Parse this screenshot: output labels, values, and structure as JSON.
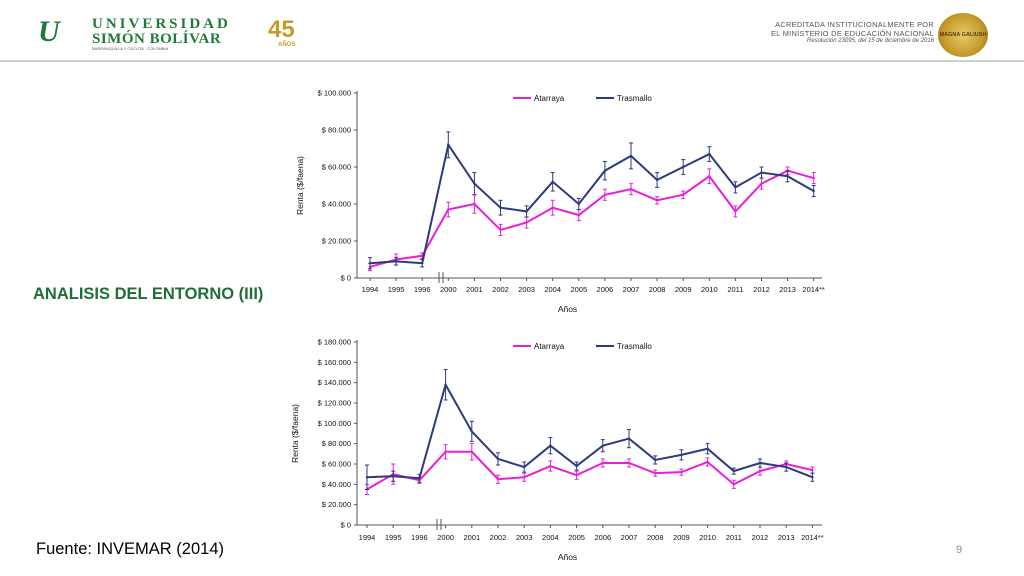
{
  "header": {
    "logo_text_line1": "UNIVERSIDAD",
    "logo_text_line2": "SIMÓN BOLÍVAR",
    "logo_small_text": "BARRANQUILLA Y CÚCUTA · COLOMBIA",
    "anniversary_badge": "45",
    "anniversary_badge_sub": "AÑOS",
    "accreditation_line1": "ACREDITADA INSTITUCIONALMENTE POR",
    "accreditation_line2": "EL MINISTERIO DE EDUCACIÓN NACIONAL",
    "accreditation_line3": "Resolución 23095, del 15 de diciembre de 2016",
    "seal_text": "MAGNA GALIUSH"
  },
  "slide": {
    "title": "ANALISIS DEL ENTORNO (III)",
    "source": "Fuente: INVEMAR (2014)",
    "page_number": "9"
  },
  "colors": {
    "brand_green": "#1f7a3a",
    "title_green": "#1f6e3a",
    "atarraya": "#e81fd8",
    "trasmallo": "#2e3a7e"
  },
  "chart_data": [
    {
      "type": "line",
      "title": "",
      "xlabel": "Años",
      "ylabel": "Renta ($/faena)",
      "categories": [
        "1994",
        "1995",
        "1996",
        "2000",
        "2001",
        "2002",
        "2003",
        "2004",
        "2005",
        "2006",
        "2007",
        "2008",
        "2009",
        "2010",
        "2011",
        "2012",
        "2013",
        "2014**"
      ],
      "axis_break_after": "1996",
      "ylim": [
        0,
        100000
      ],
      "yticks": [
        0,
        20000,
        40000,
        60000,
        80000,
        100000
      ],
      "ytick_labels": [
        "$ 0",
        "$ 20.000",
        "$ 40.000",
        "$ 60.000",
        "$ 80.000",
        "$ 100.000"
      ],
      "legend_position": "top",
      "grid": false,
      "series": [
        {
          "name": "Atarraya",
          "color": "#e81fd8",
          "values": [
            6000,
            10000,
            12000,
            37000,
            40000,
            26000,
            30000,
            38000,
            34000,
            45000,
            48000,
            42000,
            45000,
            55000,
            36000,
            51000,
            58000,
            54000
          ],
          "errors": [
            2000,
            3000,
            1500,
            4000,
            5000,
            3000,
            3000,
            4000,
            3000,
            3000,
            3000,
            2000,
            2000,
            4000,
            3000,
            3000,
            2000,
            3000
          ]
        },
        {
          "name": "Trasmallo",
          "color": "#2e3a7e",
          "values": [
            8000,
            9000,
            8000,
            72000,
            51000,
            38000,
            36000,
            52000,
            40000,
            58000,
            66000,
            53000,
            60000,
            67000,
            49000,
            57000,
            55000,
            47000
          ],
          "errors": [
            3000,
            2000,
            2000,
            7000,
            6000,
            4000,
            3000,
            5000,
            3000,
            5000,
            7000,
            4000,
            4000,
            4000,
            3000,
            3000,
            3000,
            3000
          ]
        }
      ]
    },
    {
      "type": "line",
      "title": "",
      "xlabel": "Años",
      "ylabel": "Renta ($/faena)",
      "categories": [
        "1994",
        "1995",
        "1996",
        "2000",
        "2001",
        "2002",
        "2003",
        "2004",
        "2005",
        "2006",
        "2007",
        "2008",
        "2009",
        "2010",
        "2011",
        "2012",
        "2013",
        "2014**"
      ],
      "axis_break_after": "1996",
      "ylim": [
        0,
        180000
      ],
      "yticks": [
        0,
        20000,
        40000,
        60000,
        80000,
        100000,
        120000,
        140000,
        160000,
        180000
      ],
      "ytick_labels": [
        "$ 0",
        "$ 20.000",
        "$ 40.000",
        "$ 60.000",
        "$ 80.000",
        "$ 100.000",
        "$ 120.000",
        "$ 140.000",
        "$ 160.000",
        "$ 180.000"
      ],
      "legend_position": "top",
      "grid": false,
      "series": [
        {
          "name": "Atarraya",
          "color": "#e81fd8",
          "values": [
            35000,
            50000,
            44000,
            72000,
            72000,
            45000,
            47000,
            58000,
            49000,
            61000,
            61000,
            51000,
            52000,
            62000,
            40000,
            53000,
            60000,
            54000
          ],
          "errors": [
            5000,
            10000,
            3000,
            7000,
            8000,
            4000,
            4000,
            5000,
            4000,
            4000,
            4000,
            3000,
            3000,
            4000,
            4000,
            4000,
            3000,
            3000
          ]
        },
        {
          "name": "Trasmallo",
          "color": "#2e3a7e",
          "values": [
            47000,
            48000,
            46000,
            138000,
            92000,
            65000,
            57000,
            78000,
            58000,
            78000,
            85000,
            64000,
            69000,
            75000,
            53000,
            61000,
            57000,
            47000
          ],
          "errors": [
            12000,
            5000,
            4000,
            15000,
            10000,
            6000,
            5000,
            8000,
            4000,
            6000,
            9000,
            4000,
            5000,
            5000,
            3000,
            4000,
            4000,
            4000
          ]
        }
      ]
    }
  ]
}
